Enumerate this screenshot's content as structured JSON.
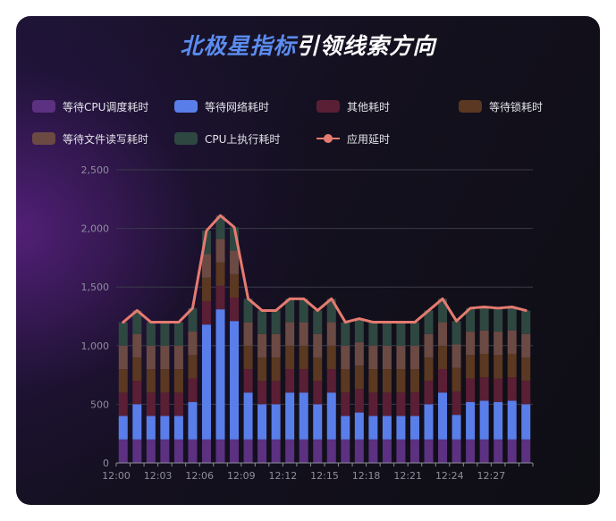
{
  "title": {
    "highlight": "北极星指标",
    "rest": "引领线索方向"
  },
  "colors": {
    "cpu_wait": "#5c3181",
    "network_wait": "#5a7ee9",
    "other": "#5a1f35",
    "lock_wait": "#5b3821",
    "file_io": "#6b4a44",
    "cpu_exec": "#2f4741",
    "latency": "#e57b70"
  },
  "legend": [
    {
      "label": "等待CPU调度耗时",
      "color": "#5c3181",
      "type": "box"
    },
    {
      "label": "等待网络耗时",
      "color": "#5a7ee9",
      "type": "box"
    },
    {
      "label": "其他耗时",
      "color": "#5a1f35",
      "type": "box"
    },
    {
      "label": "等待锁耗时",
      "color": "#5b3821",
      "type": "box"
    },
    {
      "label": "等待文件读写耗时",
      "color": "#6b4a44",
      "type": "box"
    },
    {
      "label": "CPU上执行耗时",
      "color": "#2f4741",
      "type": "box"
    },
    {
      "label": "应用延时",
      "color": "#e57b70",
      "type": "line"
    }
  ],
  "chart_data": {
    "type": "bar",
    "stacked": true,
    "x": [
      "12:00",
      "12:01",
      "12:02",
      "12:03",
      "12:04",
      "12:05",
      "12:06",
      "12:07",
      "12:08",
      "12:09",
      "12:10",
      "12:11",
      "12:12",
      "12:13",
      "12:14",
      "12:15",
      "12:16",
      "12:17",
      "12:18",
      "12:19",
      "12:20",
      "12:21",
      "12:22",
      "12:23",
      "12:24",
      "12:25",
      "12:26",
      "12:27",
      "12:28",
      "12:29"
    ],
    "x_tick_labels": [
      "12:00",
      "12:03",
      "12:06",
      "12:09",
      "12:12",
      "12:15",
      "12:18",
      "12:21",
      "12:24",
      "12:27"
    ],
    "ylim": [
      0,
      2500
    ],
    "y_ticks": [
      0,
      500,
      1000,
      1500,
      2000,
      2500
    ],
    "y_tick_labels": [
      "0",
      "500",
      "1,000",
      "1,500",
      "2,000",
      "2,500"
    ],
    "series": [
      {
        "name": "等待CPU调度耗时",
        "values": [
          200,
          200,
          200,
          200,
          200,
          200,
          200,
          200,
          200,
          200,
          200,
          200,
          200,
          200,
          200,
          200,
          200,
          200,
          200,
          200,
          200,
          200,
          200,
          200,
          200,
          200,
          200,
          200,
          200,
          200
        ]
      },
      {
        "name": "等待网络耗时",
        "values": [
          200,
          300,
          200,
          200,
          200,
          320,
          980,
          1110,
          1010,
          400,
          300,
          300,
          400,
          400,
          300,
          400,
          200,
          230,
          200,
          200,
          200,
          200,
          300,
          400,
          210,
          320,
          330,
          320,
          330,
          300
        ]
      },
      {
        "name": "其他耗时",
        "values": [
          200,
          200,
          200,
          200,
          200,
          200,
          200,
          200,
          200,
          200,
          200,
          200,
          200,
          200,
          200,
          200,
          200,
          200,
          200,
          200,
          200,
          200,
          200,
          200,
          200,
          200,
          200,
          200,
          200,
          200
        ]
      },
      {
        "name": "等待锁耗时",
        "values": [
          200,
          200,
          200,
          200,
          200,
          200,
          200,
          200,
          200,
          200,
          200,
          200,
          200,
          200,
          200,
          200,
          200,
          200,
          200,
          200,
          200,
          200,
          200,
          200,
          200,
          200,
          200,
          200,
          200,
          200
        ]
      },
      {
        "name": "等待文件读写耗时",
        "values": [
          200,
          200,
          200,
          200,
          200,
          200,
          200,
          200,
          200,
          200,
          200,
          200,
          200,
          200,
          200,
          200,
          200,
          200,
          200,
          200,
          200,
          200,
          200,
          200,
          200,
          200,
          200,
          200,
          200,
          200
        ]
      },
      {
        "name": "CPU上执行耗时",
        "values": [
          200,
          200,
          200,
          200,
          200,
          200,
          200,
          200,
          200,
          200,
          200,
          200,
          200,
          200,
          200,
          200,
          200,
          200,
          200,
          200,
          200,
          200,
          200,
          200,
          200,
          200,
          200,
          200,
          200,
          200
        ]
      },
      {
        "name": "应用延时",
        "type": "line",
        "values": [
          1200,
          1300,
          1200,
          1200,
          1200,
          1320,
          1980,
          2110,
          2010,
          1400,
          1300,
          1300,
          1400,
          1400,
          1300,
          1400,
          1200,
          1230,
          1200,
          1200,
          1200,
          1200,
          1300,
          1400,
          1210,
          1320,
          1330,
          1320,
          1330,
          1300
        ]
      }
    ],
    "grid": true,
    "legend_position": "top"
  }
}
